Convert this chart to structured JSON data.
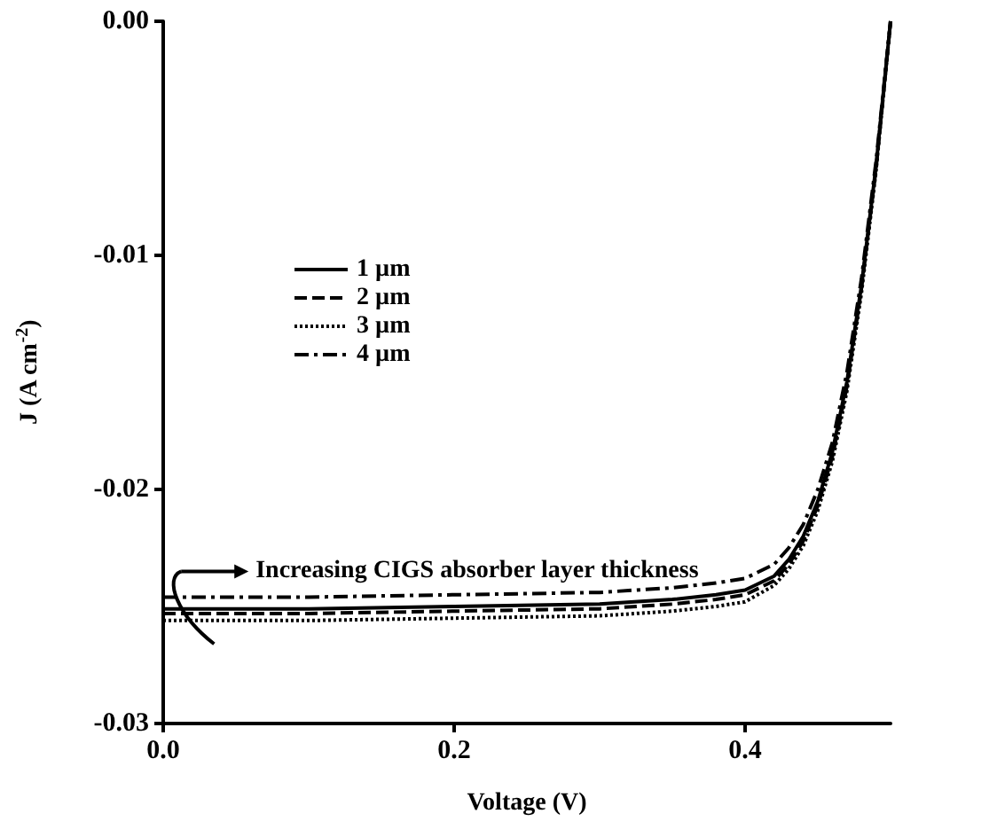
{
  "chart_data": {
    "type": "line",
    "xlabel": "Voltage (V)",
    "ylabel": "J (A cm$^{-2}$)",
    "x": [
      0,
      0.1,
      0.2,
      0.3,
      0.35,
      0.38,
      0.4,
      0.42,
      0.43,
      0.44,
      0.45,
      0.46,
      0.47,
      0.48,
      0.49,
      0.5
    ],
    "series": [
      {
        "name": "1 µm",
        "color": "#000000",
        "line_style": "solid",
        "values": [
          -0.0251,
          -0.0251,
          -0.025,
          -0.0249,
          -0.0247,
          -0.0245,
          -0.0243,
          -0.0237,
          -0.023,
          -0.022,
          -0.0205,
          -0.0184,
          -0.0154,
          -0.0113,
          -0.0062,
          0
        ]
      },
      {
        "name": "2 µm",
        "color": "#000000",
        "line_style": "dashed",
        "values": [
          -0.0253,
          -0.0253,
          -0.0252,
          -0.0251,
          -0.0249,
          -0.0247,
          -0.0245,
          -0.0239,
          -0.0232,
          -0.0222,
          -0.0207,
          -0.0186,
          -0.0156,
          -0.0114,
          -0.0063,
          0
        ]
      },
      {
        "name": "3 µm",
        "color": "#000000",
        "line_style": "dotted",
        "values": [
          -0.0256,
          -0.0256,
          -0.0255,
          -0.0254,
          -0.0252,
          -0.025,
          -0.0248,
          -0.0241,
          -0.0234,
          -0.0224,
          -0.0209,
          -0.0188,
          -0.0158,
          -0.0116,
          -0.0064,
          0
        ]
      },
      {
        "name": "4 µm",
        "color": "#000000",
        "line_style": "dashdot",
        "values": [
          -0.0246,
          -0.0246,
          -0.0245,
          -0.0244,
          -0.0242,
          -0.024,
          -0.0238,
          -0.0232,
          -0.0225,
          -0.0215,
          -0.02,
          -0.018,
          -0.015,
          -0.011,
          -0.006,
          0
        ]
      }
    ],
    "xlim": [
      0,
      0.5
    ],
    "xticks": [
      {
        "value": 0,
        "label": "0.0"
      },
      0.2,
      0.4
    ],
    "ylim": [
      -0.03,
      0
    ],
    "yticks": [
      -0.03,
      -0.02,
      -0.01,
      {
        "value": 0,
        "label": "0.00"
      }
    ],
    "annotations": [
      "Increasing CIGS absorber layer thickness"
    ],
    "grid": false,
    "legend": "top left",
    "marker": "none"
  }
}
